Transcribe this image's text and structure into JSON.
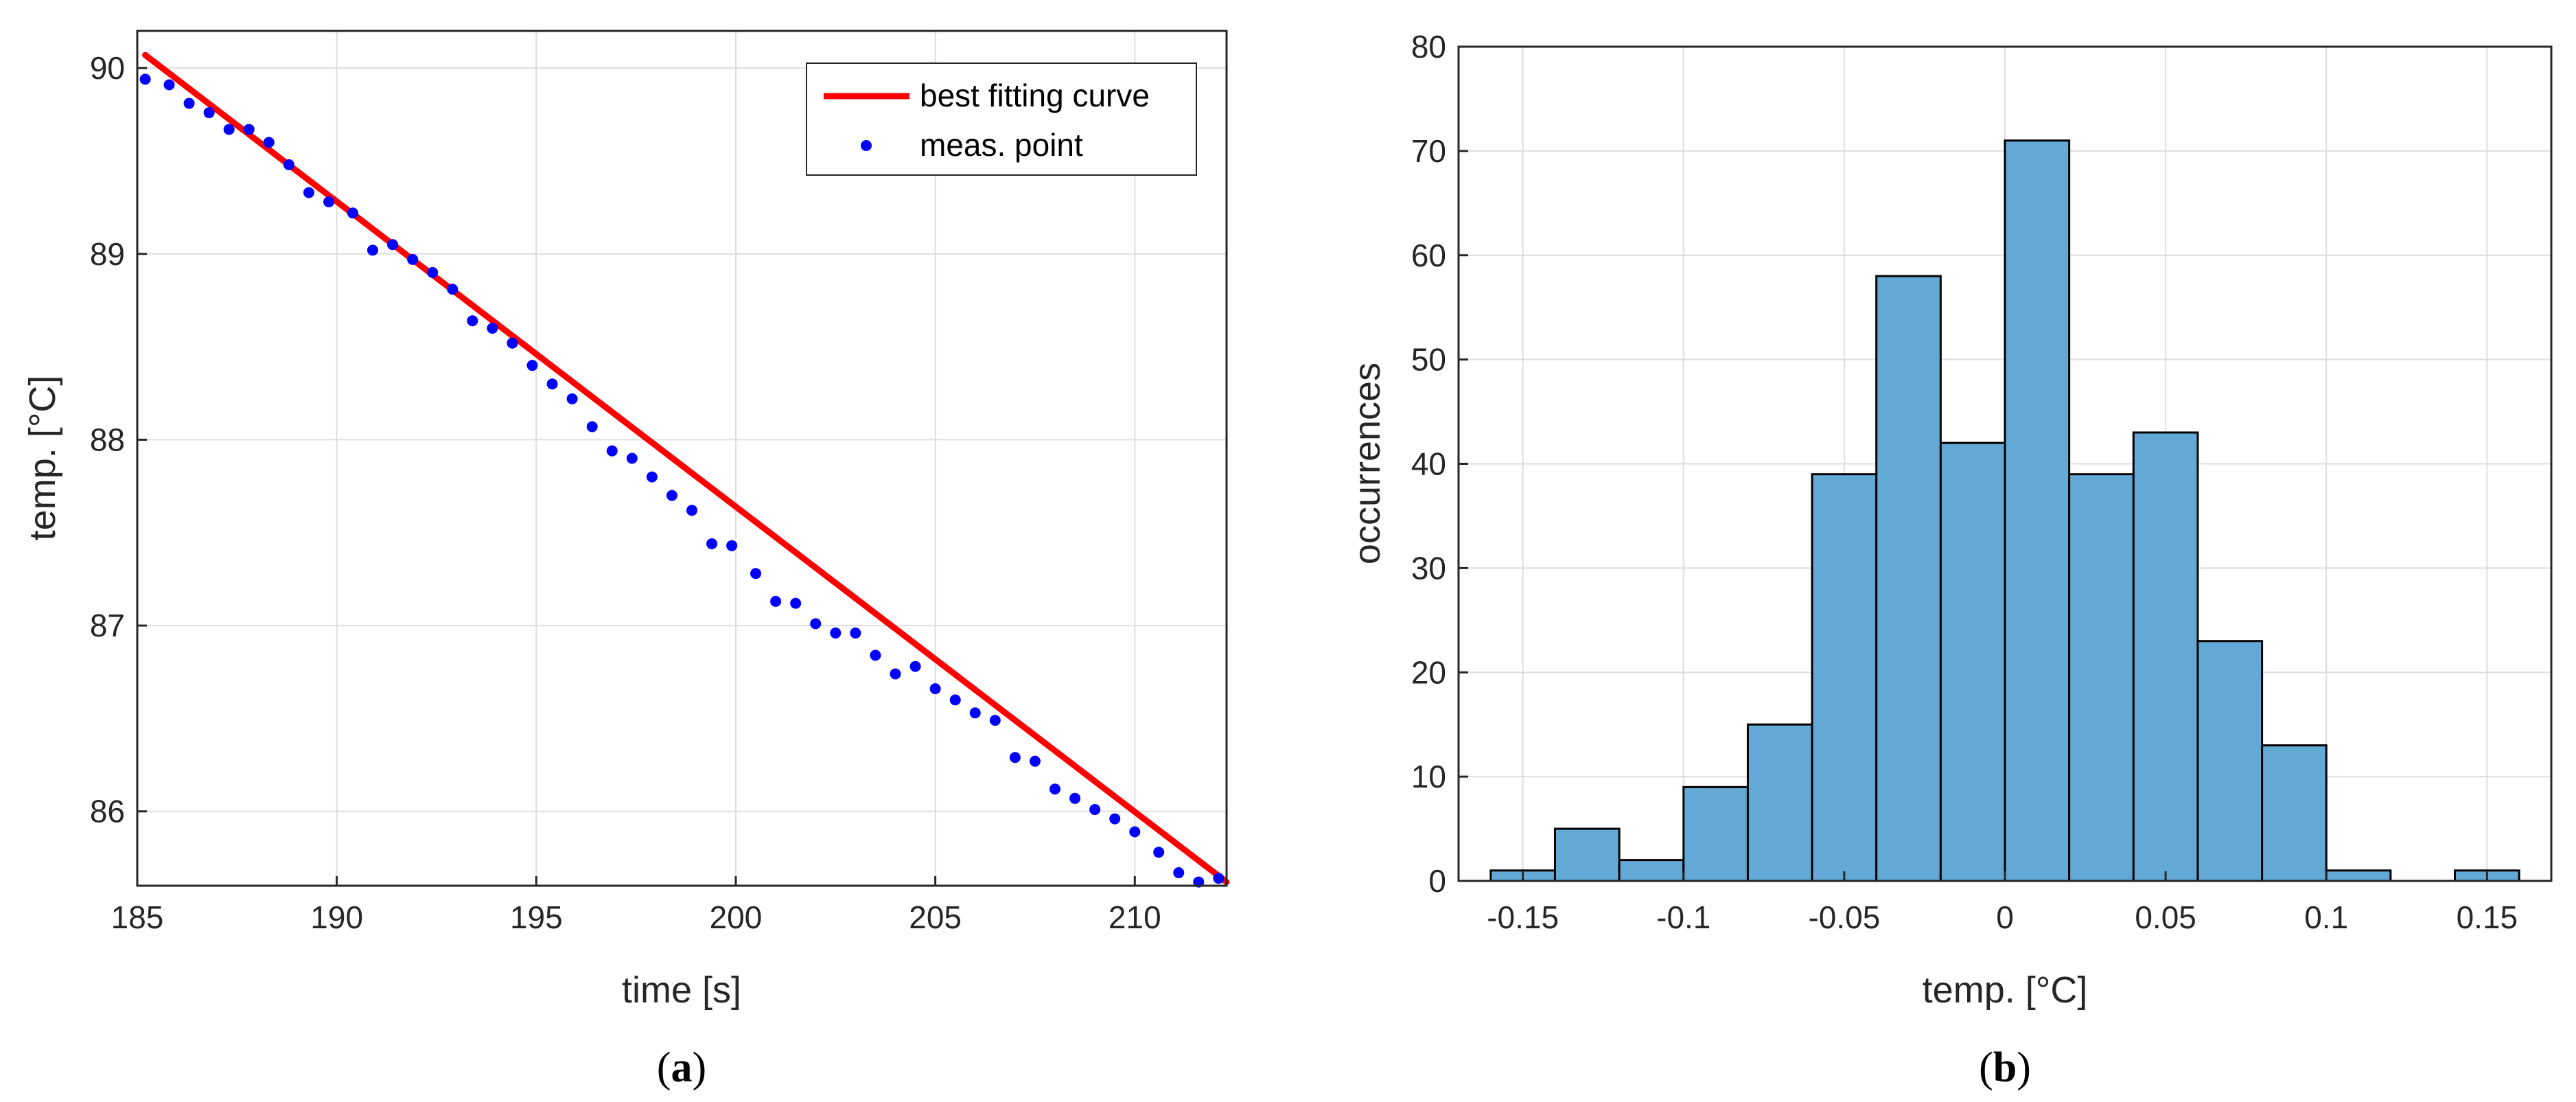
{
  "chart_data": [
    {
      "type": "scatter",
      "panel_label": "a",
      "xlabel": "time [s]",
      "ylabel": "temp. [°C]",
      "xlim": [
        185,
        212.3
      ],
      "ylim": [
        85.6,
        90.2
      ],
      "xticks": [
        185,
        190,
        195,
        200,
        205,
        210
      ],
      "yticks": [
        86,
        87,
        88,
        89,
        90
      ],
      "grid": true,
      "legend": {
        "placement": "top-right",
        "entries": [
          "best fitting curve",
          "meas. point"
        ]
      },
      "colors": {
        "fit": "#ff0000",
        "points": "#0000ff"
      },
      "series": [
        {
          "name": "best fitting curve",
          "type": "line",
          "x": [
            185.2,
            212.3
          ],
          "y": [
            90.07,
            85.62
          ]
        },
        {
          "name": "meas. point",
          "type": "scatter",
          "x": [
            185.2,
            185.8,
            186.3,
            186.8,
            187.3,
            187.8,
            188.3,
            188.8,
            189.3,
            189.8,
            190.4,
            190.9,
            191.4,
            191.9,
            192.4,
            192.9,
            193.4,
            193.9,
            194.4,
            194.9,
            195.4,
            195.9,
            196.4,
            196.9,
            197.4,
            197.9,
            198.4,
            198.9,
            199.4,
            199.9,
            200.5,
            201.0,
            201.5,
            202.0,
            202.5,
            203.0,
            203.5,
            204.0,
            204.5,
            205.0,
            205.5,
            206.0,
            206.5,
            207.0,
            207.5,
            208.0,
            208.5,
            209.0,
            209.5,
            210.0,
            210.6,
            211.1,
            211.6,
            212.1
          ],
          "y": [
            89.94,
            89.91,
            89.81,
            89.76,
            89.67,
            89.67,
            89.6,
            89.48,
            89.33,
            89.28,
            89.22,
            89.02,
            89.05,
            88.97,
            88.9,
            88.81,
            88.64,
            88.6,
            88.52,
            88.4,
            88.3,
            88.22,
            88.07,
            87.94,
            87.9,
            87.8,
            87.7,
            87.62,
            87.44,
            87.43,
            87.28,
            87.13,
            87.12,
            87.01,
            86.96,
            86.96,
            86.84,
            86.74,
            86.78,
            86.66,
            86.6,
            86.53,
            86.49,
            86.29,
            86.27,
            86.12,
            86.07,
            86.01,
            85.96,
            85.89,
            85.78,
            85.67,
            85.62,
            85.64
          ]
        }
      ]
    },
    {
      "type": "bar",
      "panel_label": "b",
      "xlabel": "temp. [°C]",
      "ylabel": "occurrences",
      "xlim": [
        -0.17,
        0.17
      ],
      "ylim": [
        0,
        80
      ],
      "xticks": [
        -0.15,
        -0.1,
        -0.05,
        0,
        0.05,
        0.1,
        0.15
      ],
      "xtick_labels": [
        "-0.15",
        "-0.1",
        "-0.05",
        "0",
        "0.05",
        "0.1",
        "0.15"
      ],
      "yticks": [
        0,
        10,
        20,
        30,
        40,
        50,
        60,
        70,
        80
      ],
      "grid": true,
      "colors": {
        "bar_fill": "#63a9d6",
        "bar_edge": "#000000"
      },
      "bin_edges": [
        -0.16,
        -0.14,
        -0.12,
        -0.1,
        -0.08,
        -0.06,
        -0.04,
        -0.02,
        0.0,
        0.02,
        0.04,
        0.06,
        0.08,
        0.1,
        0.12,
        0.14,
        0.16
      ],
      "values": [
        1,
        5,
        2,
        9,
        15,
        39,
        58,
        42,
        71,
        39,
        43,
        23,
        13,
        1,
        0,
        1
      ]
    }
  ]
}
